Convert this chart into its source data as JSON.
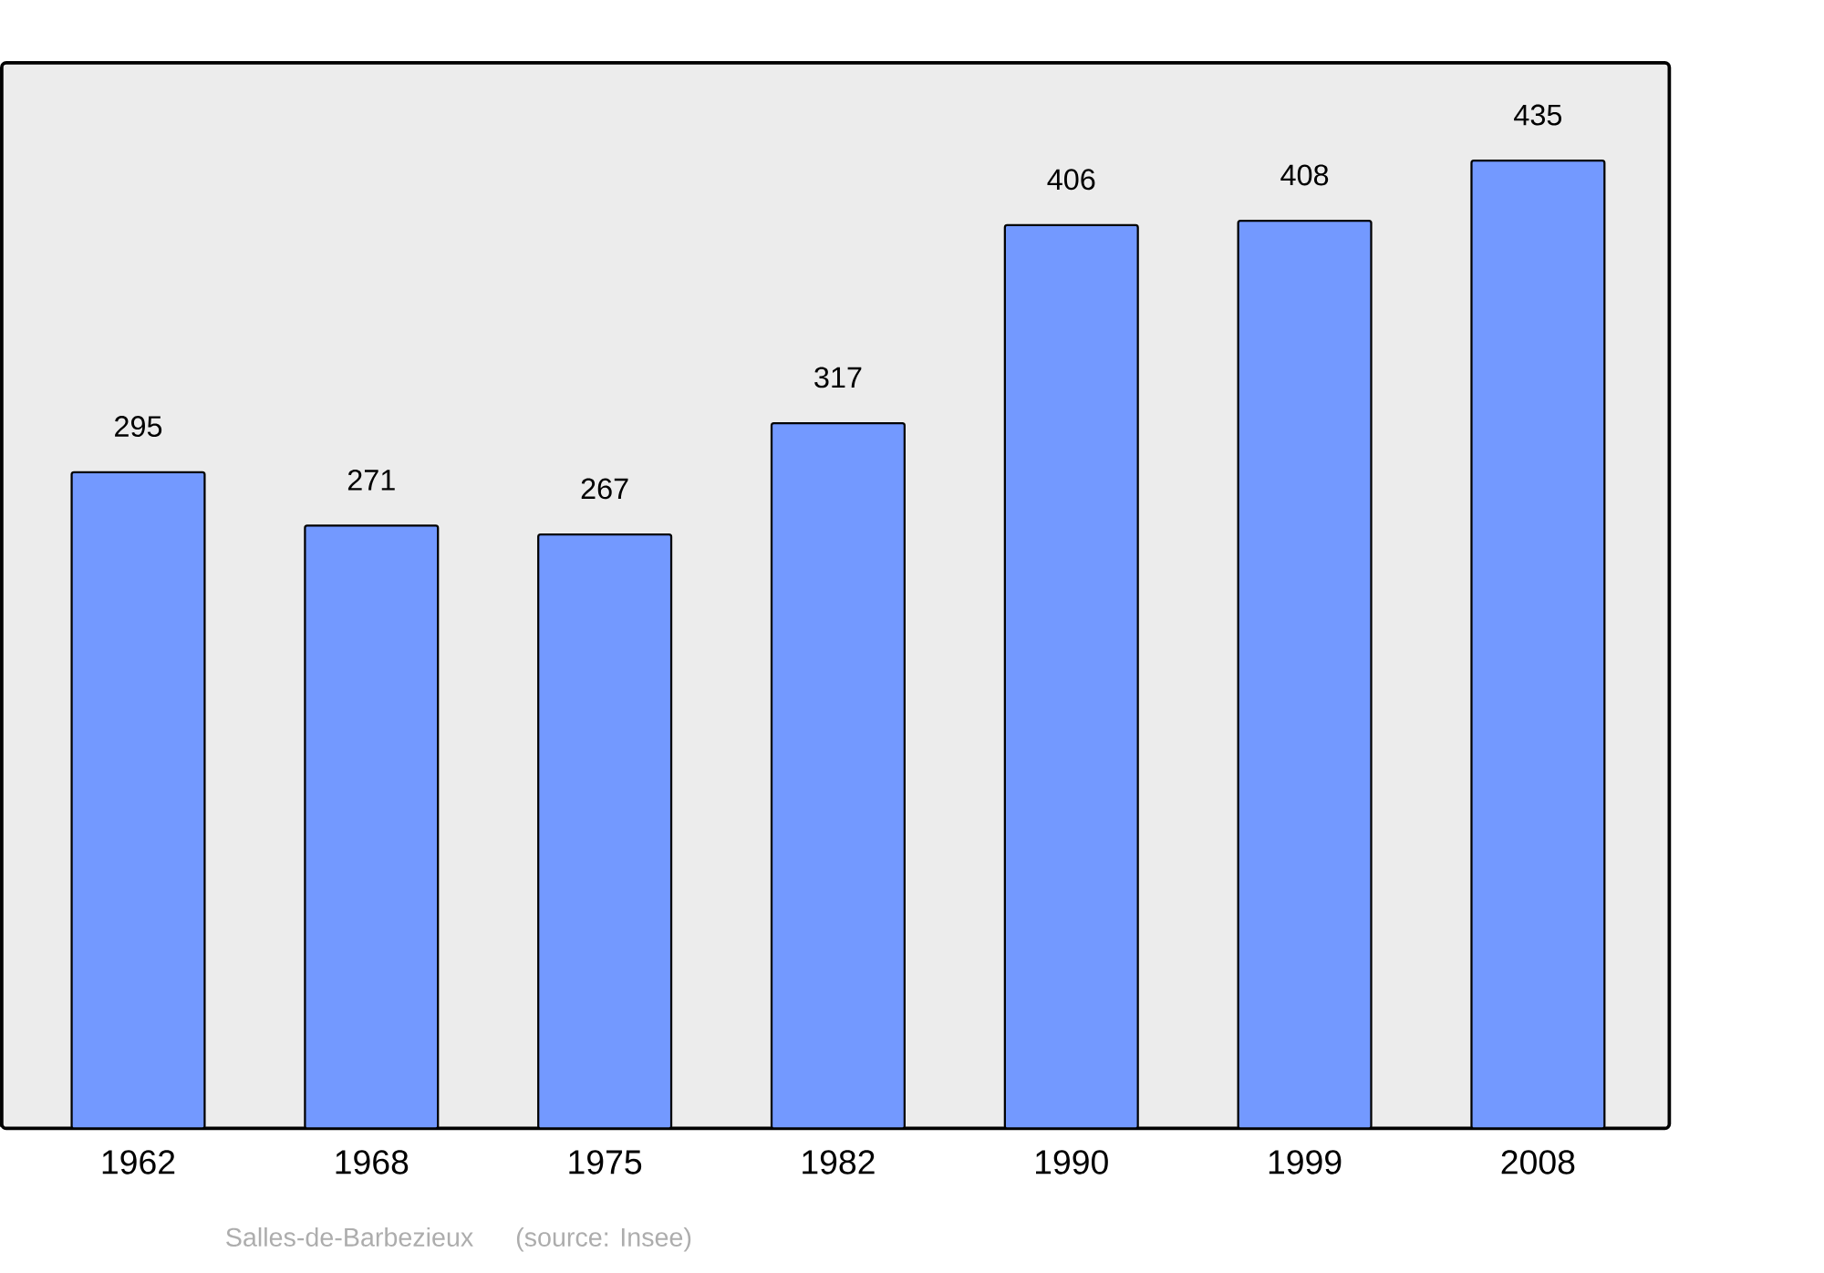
{
  "chart_data": {
    "type": "bar",
    "categories": [
      "1962",
      "1968",
      "1975",
      "1982",
      "1990",
      "1999",
      "2008"
    ],
    "values": [
      295,
      271,
      267,
      317,
      406,
      408,
      435
    ],
    "color": "#7399ff",
    "ylim": [
      0,
      479
    ],
    "data_labels": true,
    "annotations": [
      "Salles-de-Barbezieux",
      "(source: Insee)"
    ]
  }
}
